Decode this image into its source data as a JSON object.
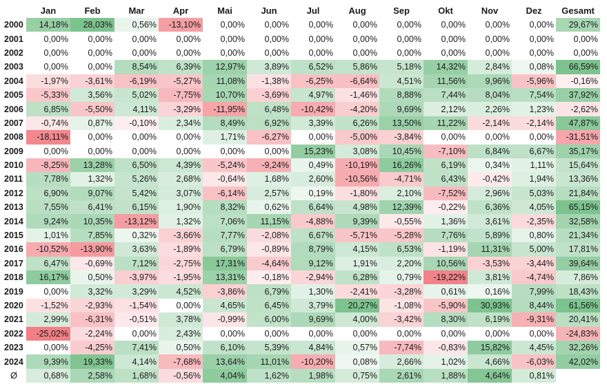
{
  "chart_data": {
    "type": "table",
    "title": "",
    "colors": {
      "positive": "#2e9e4a",
      "negative": "#e8323c",
      "neutral": "#ffffff"
    },
    "corner_label": "",
    "columns": [
      "Jan",
      "Feb",
      "Mar",
      "Apr",
      "Mai",
      "Jun",
      "Jul",
      "Aug",
      "Sep",
      "Okt",
      "Nov",
      "Dez",
      "Gesamt"
    ],
    "rows": [
      {
        "year": "2000",
        "values": [
          "14,18%",
          "28,03%",
          "0,56%",
          "-13,10%",
          "0,00%",
          "0,00%",
          "0,00%",
          "0,00%",
          "0,00%",
          "0,00%",
          "0,00%",
          "0,00%",
          "29,67%"
        ]
      },
      {
        "year": "2001",
        "values": [
          "0,00%",
          "0,00%",
          "0,00%",
          "0,00%",
          "0,00%",
          "0,00%",
          "0,00%",
          "0,00%",
          "0,00%",
          "0,00%",
          "0,00%",
          "0,00%",
          "0,00%"
        ]
      },
      {
        "year": "2002",
        "values": [
          "0,00%",
          "0,00%",
          "0,00%",
          "0,00%",
          "0,00%",
          "0,00%",
          "0,00%",
          "0,00%",
          "0,00%",
          "0,00%",
          "0,00%",
          "0,00%",
          "0,00%"
        ]
      },
      {
        "year": "2003",
        "values": [
          "0,00%",
          "0,00%",
          "8,54%",
          "6,39%",
          "12,97%",
          "3,89%",
          "6,52%",
          "5,86%",
          "5,18%",
          "14,32%",
          "2,84%",
          "0,08%",
          "66,59%"
        ]
      },
      {
        "year": "2004",
        "values": [
          "-1,97%",
          "-3,61%",
          "-6,19%",
          "-5,27%",
          "11,08%",
          "-1,38%",
          "-6,25%",
          "-6,64%",
          "4,51%",
          "11,56%",
          "9,96%",
          "-5,96%",
          "-0,16%"
        ]
      },
      {
        "year": "2005",
        "values": [
          "-5,33%",
          "3,56%",
          "5,02%",
          "-7,75%",
          "10,70%",
          "-3,69%",
          "4,97%",
          "-1,46%",
          "8,88%",
          "7,44%",
          "8,04%",
          "7,54%",
          "37,92%"
        ]
      },
      {
        "year": "2006",
        "values": [
          "6,85%",
          "-5,50%",
          "4,11%",
          "-3,29%",
          "-11,95%",
          "6,48%",
          "-10,42%",
          "-4,20%",
          "9,69%",
          "2,12%",
          "2,26%",
          "1,23%",
          "-2,62%"
        ]
      },
      {
        "year": "2007",
        "values": [
          "-0,74%",
          "0,87%",
          "-0,10%",
          "2,34%",
          "8,49%",
          "6,92%",
          "3,39%",
          "6,26%",
          "13,50%",
          "11,22%",
          "-2,14%",
          "-2,14%",
          "47,87%"
        ]
      },
      {
        "year": "2008",
        "values": [
          "-18,11%",
          "0,00%",
          "0,00%",
          "0,00%",
          "1,71%",
          "-6,27%",
          "0,00%",
          "-5,00%",
          "-3,84%",
          "0,00%",
          "0,00%",
          "0,00%",
          "-31,51%"
        ]
      },
      {
        "year": "2009",
        "values": [
          "0,00%",
          "0,00%",
          "0,00%",
          "0,00%",
          "0,00%",
          "0,00%",
          "15,23%",
          "3,08%",
          "10,45%",
          "-7,10%",
          "6,84%",
          "6,67%",
          "35,17%"
        ]
      },
      {
        "year": "2010",
        "values": [
          "-8,25%",
          "13,28%",
          "6,50%",
          "4,39%",
          "-5,24%",
          "-9,24%",
          "0,49%",
          "-10,19%",
          "16,26%",
          "6,19%",
          "0,34%",
          "1,11%",
          "15,64%"
        ]
      },
      {
        "year": "2011",
        "values": [
          "7,78%",
          "1,32%",
          "5,26%",
          "2,68%",
          "-0,64%",
          "1,68%",
          "2,60%",
          "-10,56%",
          "-4,71%",
          "6,43%",
          "-0,42%",
          "1,94%",
          "13,36%"
        ]
      },
      {
        "year": "2012",
        "values": [
          "6,90%",
          "9,07%",
          "5,42%",
          "3,07%",
          "-6,14%",
          "2,57%",
          "0,19%",
          "-1,80%",
          "2,10%",
          "-7,52%",
          "2,96%",
          "5,03%",
          "21,84%"
        ]
      },
      {
        "year": "2013",
        "values": [
          "7,55%",
          "6,41%",
          "6,15%",
          "1,90%",
          "8,32%",
          "0,62%",
          "6,64%",
          "4,98%",
          "12,39%",
          "-0,22%",
          "6,36%",
          "4,05%",
          "65,15%"
        ]
      },
      {
        "year": "2014",
        "values": [
          "9,24%",
          "10,35%",
          "-13,12%",
          "1,32%",
          "7,06%",
          "11,15%",
          "-4,88%",
          "9,39%",
          "-0,55%",
          "1,36%",
          "3,61%",
          "-2,35%",
          "32,58%"
        ]
      },
      {
        "year": "2015",
        "values": [
          "1,01%",
          "7,85%",
          "0,32%",
          "-3,66%",
          "7,77%",
          "-2,08%",
          "6,67%",
          "-5,71%",
          "-5,28%",
          "7,76%",
          "5,89%",
          "0,80%",
          "21,34%"
        ]
      },
      {
        "year": "2016",
        "values": [
          "-10,52%",
          "-13,90%",
          "3,63%",
          "-1,89%",
          "6,79%",
          "-0,89%",
          "8,79%",
          "4,15%",
          "6,53%",
          "-1,19%",
          "11,31%",
          "5,00%",
          "17,81%"
        ]
      },
      {
        "year": "2017",
        "values": [
          "6,47%",
          "-0,69%",
          "7,12%",
          "-2,75%",
          "17,31%",
          "-4,64%",
          "9,12%",
          "1,91%",
          "2,20%",
          "10,56%",
          "-3,53%",
          "-3,44%",
          "39,64%"
        ]
      },
      {
        "year": "2018",
        "values": [
          "16,17%",
          "0,50%",
          "-3,97%",
          "-1,95%",
          "13,31%",
          "-0,18%",
          "-2,94%",
          "6,28%",
          "0,79%",
          "-19,22%",
          "3,81%",
          "-4,74%",
          "7,86%"
        ]
      },
      {
        "year": "2019",
        "values": [
          "0,00%",
          "3,32%",
          "3,29%",
          "4,52%",
          "-3,86%",
          "6,79%",
          "1,30%",
          "-2,41%",
          "-3,28%",
          "0,61%",
          "0,16%",
          "7,99%",
          "18,43%"
        ]
      },
      {
        "year": "2020",
        "values": [
          "-1,52%",
          "-2,93%",
          "-1,54%",
          "0,00%",
          "4,65%",
          "6,45%",
          "3,79%",
          "20,27%",
          "-1,08%",
          "-5,90%",
          "30,93%",
          "8,44%",
          "61,56%"
        ]
      },
      {
        "year": "2021",
        "values": [
          "2,99%",
          "-6,31%",
          "-0,51%",
          "3,78%",
          "-0,99%",
          "6,00%",
          "9,69%",
          "4,00%",
          "-3,42%",
          "8,30%",
          "6,19%",
          "-9,31%",
          "20,41%"
        ]
      },
      {
        "year": "2022",
        "values": [
          "-25,02%",
          "-2,24%",
          "0,00%",
          "2,43%",
          "0,00%",
          "0,00%",
          "0,00%",
          "0,00%",
          "0,00%",
          "0,00%",
          "0,00%",
          "0,00%",
          "-24,83%"
        ]
      },
      {
        "year": "2023",
        "values": [
          "0,00%",
          "-4,25%",
          "7,41%",
          "0,50%",
          "6,10%",
          "5,39%",
          "4,84%",
          "0,57%",
          "-7,74%",
          "-0,83%",
          "15,82%",
          "4,45%",
          "32,26%"
        ]
      },
      {
        "year": "2024",
        "values": [
          "9,39%",
          "19,33%",
          "4,14%",
          "-7,68%",
          "13,64%",
          "11,01%",
          "-10,20%",
          "0,08%",
          "2,66%",
          "1,02%",
          "4,66%",
          "-6,03%",
          "42,02%"
        ]
      }
    ],
    "average_row": {
      "label": "Ø",
      "values": [
        "0,68%",
        "2,58%",
        "1,68%",
        "-0,56%",
        "4,04%",
        "1,62%",
        "1,98%",
        "0,75%",
        "2,61%",
        "1,88%",
        "4,64%",
        "0,81%",
        ""
      ]
    }
  }
}
